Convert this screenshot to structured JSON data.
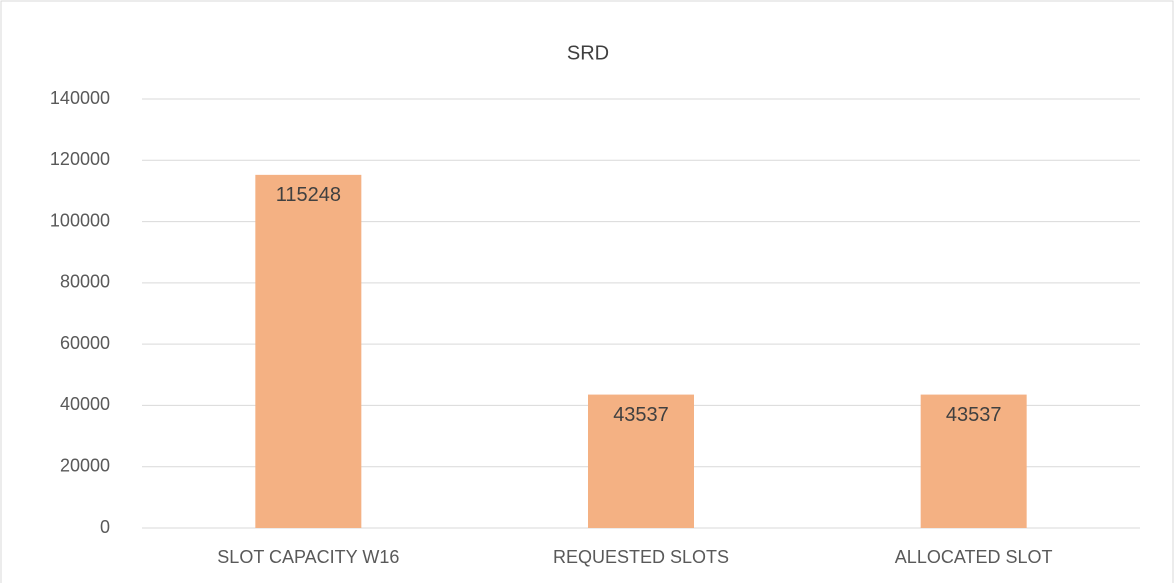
{
  "chart_data": {
    "type": "bar",
    "title": "SRD",
    "categories": [
      "SLOT CAPACITY W16",
      "REQUESTED SLOTS",
      "ALLOCATED SLOT"
    ],
    "values": [
      115248,
      43537,
      43537
    ],
    "color": "#f4b183",
    "ylim": [
      0,
      140000
    ],
    "yticks": [
      0,
      20000,
      40000,
      60000,
      80000,
      100000,
      120000,
      140000
    ],
    "grid": true
  }
}
